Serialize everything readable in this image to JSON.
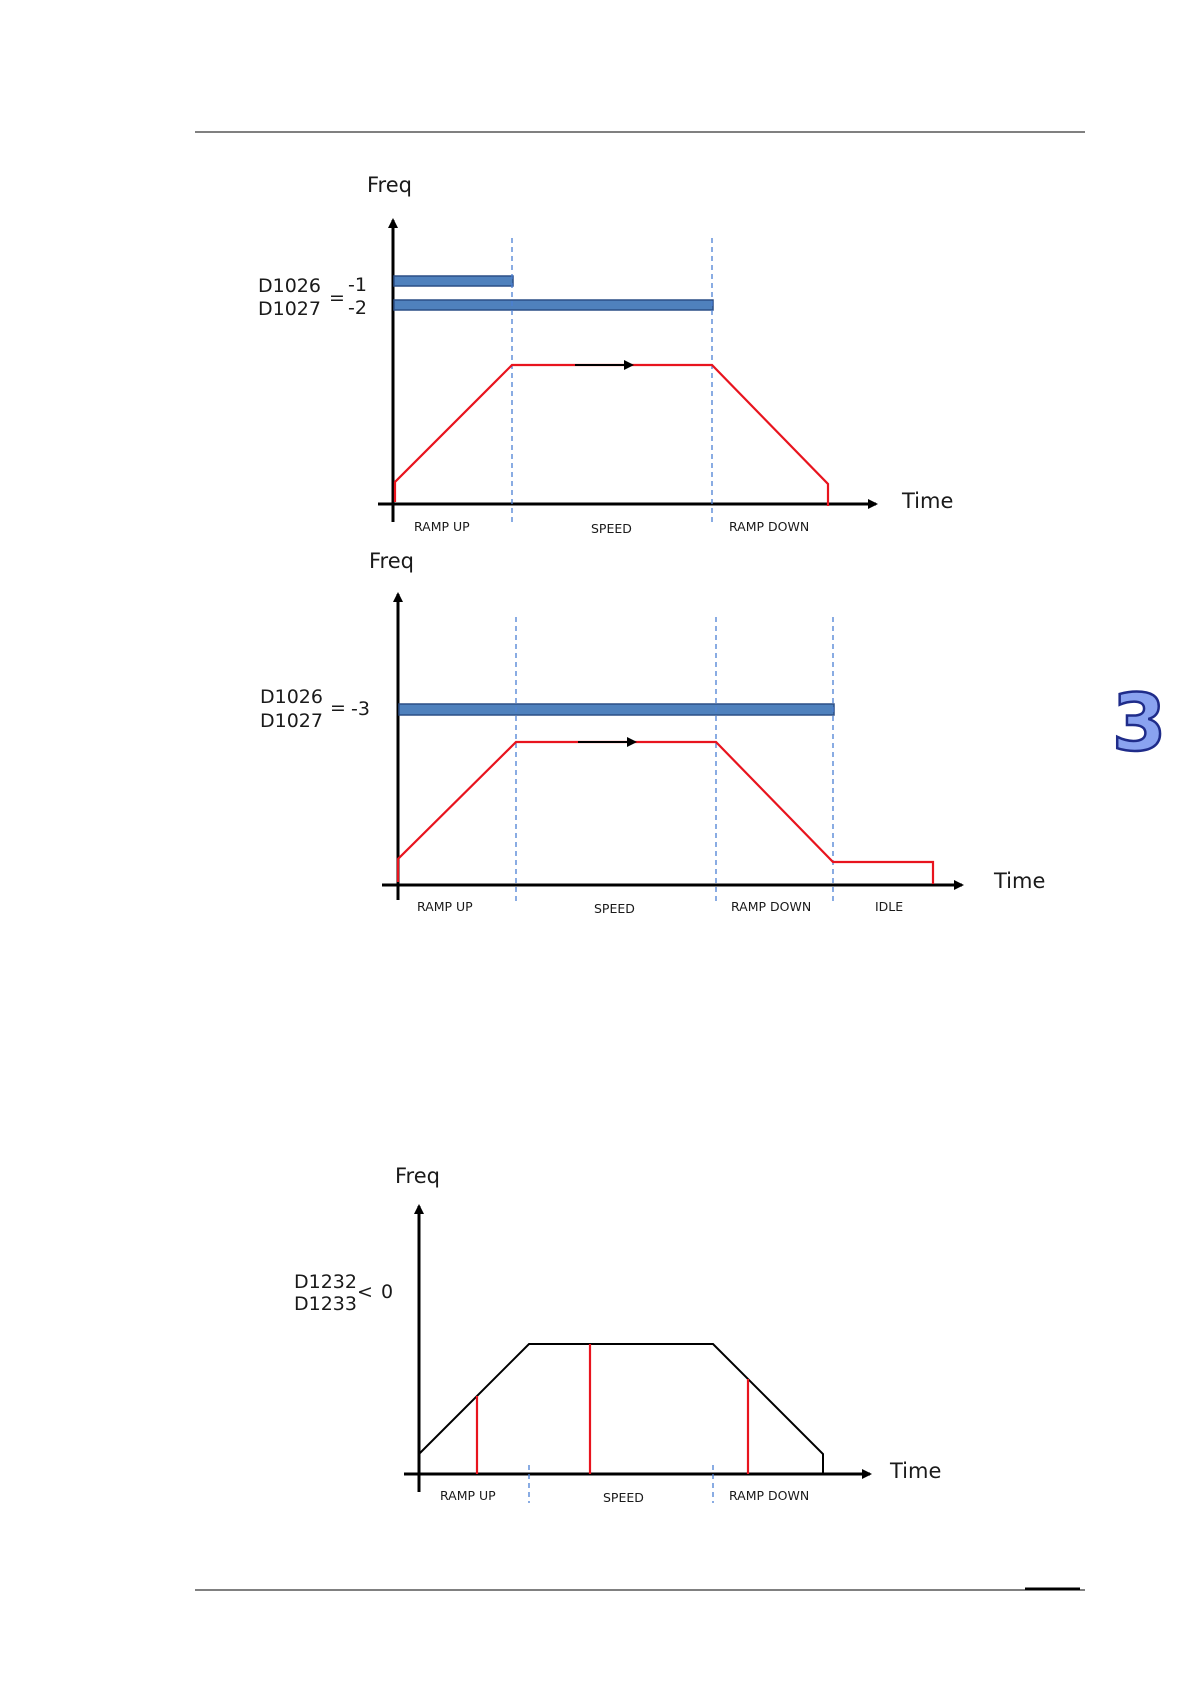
{
  "chapter_tab": {
    "number": "3",
    "color": "#8aa3f0"
  },
  "figure1": {
    "y_axis_label": "Freq",
    "x_axis_label": "Time",
    "registers": [
      "D1026",
      "D1027"
    ],
    "equals": "=",
    "values": [
      "-1",
      "-2"
    ],
    "phases": [
      "RAMP UP",
      "SPEED",
      "RAMP DOWN"
    ]
  },
  "figure2": {
    "y_axis_label": "Freq",
    "x_axis_label": "Time",
    "registers": [
      "D1026",
      "D1027"
    ],
    "equals": "=",
    "value": "-3",
    "phases": [
      "RAMP UP",
      "SPEED",
      "RAMP DOWN",
      "IDLE"
    ]
  },
  "figure3": {
    "y_axis_label": "Freq",
    "x_axis_label": "Time",
    "registers": [
      "D1232",
      "D1233"
    ],
    "comparator": "<",
    "value": "0",
    "phases": [
      "RAMP UP",
      "SPEED",
      "RAMP DOWN"
    ]
  },
  "colors": {
    "profile": "#e8141e",
    "bar": "#4f81bd",
    "divider": "#4a7fd4"
  }
}
